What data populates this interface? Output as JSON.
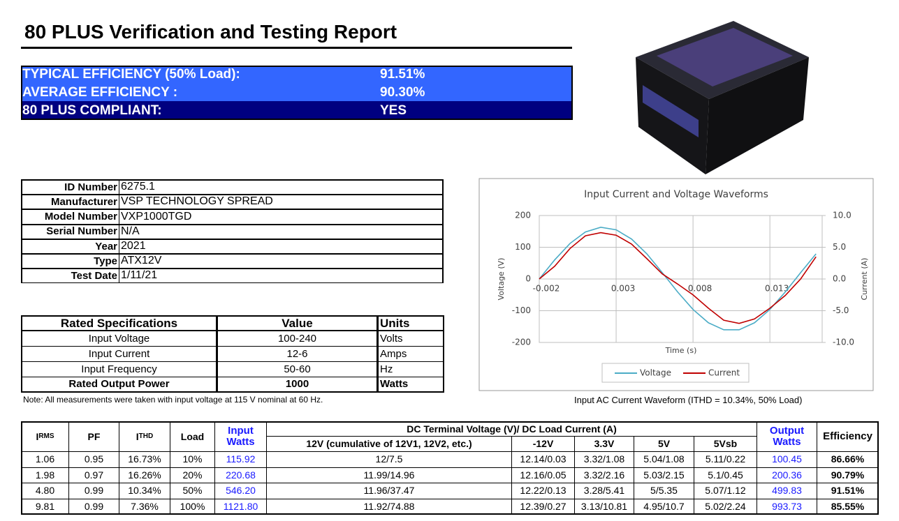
{
  "title": "80 PLUS Verification and Testing Report",
  "summary": [
    [
      "TYPICAL EFFICIENCY (50% Load):",
      "91.51%"
    ],
    [
      "AVERAGE EFFICIENCY :",
      "90.30%"
    ],
    [
      "80 PLUS COMPLIANT:",
      "YES"
    ]
  ],
  "id_table": [
    [
      "ID Number",
      "6275.1"
    ],
    [
      "Manufacturer",
      "VSP TECHNOLOGY SPREAD"
    ],
    [
      "Model Number",
      "VXP1000TGD"
    ],
    [
      "Serial Number",
      "N/A"
    ],
    [
      "Year",
      "2021"
    ],
    [
      "Type",
      "ATX12V"
    ],
    [
      "Test Date",
      "1/11/21"
    ]
  ],
  "specs_table": {
    "headers": [
      "Rated Specifications",
      "Value",
      "Units"
    ],
    "rows": [
      [
        "Input Voltage",
        "100-240",
        "Volts"
      ],
      [
        "Input Current",
        "12-6",
        "Amps"
      ],
      [
        "Input Frequency",
        "50-60",
        "Hz"
      ],
      [
        "Rated Output Power",
        "1000",
        "Watts"
      ]
    ]
  },
  "note": "Note: All measurements were taken with input voltage at 115 V nominal at 60 Hz.",
  "chart_caption": "Input AC Current Waveform (ITHD = 10.34%, 50% Load)",
  "chart_data": {
    "type": "line",
    "title": "Input Current and Voltage Waveforms",
    "xlabel": "Time (s)",
    "ylabel": "Voltage (V)",
    "y2label": "Current (A)",
    "x": [
      -0.002,
      -0.001,
      0,
      0.001,
      0.002,
      0.003,
      0.004,
      0.005,
      0.006,
      0.007,
      0.008,
      0.009,
      0.01,
      0.011,
      0.012,
      0.013,
      0.014,
      0.015,
      0.016
    ],
    "xlim": [
      -0.002,
      0.0164
    ],
    "xticks": [
      -0.002,
      0.003,
      0.008,
      0.013
    ],
    "ylim": [
      -200,
      200
    ],
    "yticks": [
      -200,
      -100,
      0,
      100,
      200
    ],
    "y2lim": [
      -10,
      10
    ],
    "y2ticks": [
      {
        "value": -10,
        "label": "-10.0"
      },
      {
        "value": -5,
        "label": "-5.0"
      },
      {
        "value": 0,
        "label": "0.0"
      },
      {
        "value": 5,
        "label": "5.0"
      },
      {
        "value": 10,
        "label": "10.0"
      }
    ],
    "grid": true,
    "legend": "bottom",
    "series": [
      {
        "name": "Voltage",
        "color": "#4bacc6",
        "values": [
          0,
          60,
          112,
          148,
          163,
          155,
          126,
          79,
          20,
          -41,
          -96,
          -138,
          -160,
          -160,
          -138,
          -96,
          -41,
          20,
          79
        ]
      },
      {
        "name": "Current",
        "color": "#c00000",
        "axis": "y2",
        "values": [
          0,
          2.0,
          4.8,
          6.8,
          7.3,
          6.9,
          5.5,
          3.2,
          0.8,
          -0.8,
          -2.5,
          -4.6,
          -6.5,
          -7.0,
          -6.3,
          -4.6,
          -2.6,
          0,
          3.5
        ]
      }
    ]
  },
  "results_table": {
    "headers": {
      "irms": {
        "main": "I",
        "sub": "RMS"
      },
      "pf": "PF",
      "ithd": {
        "main": "I",
        "sub": "THD"
      },
      "load": "Load",
      "input_watts": "Input Watts",
      "dc_group": "DC Terminal Voltage (V)/ DC Load Current (A)",
      "dc_columns": [
        "12V (cumulative of 12V1, 12V2, etc.)",
        "-12V",
        "3.3V",
        "5V",
        "5Vsb"
      ],
      "output_watts": "Output Watts",
      "efficiency": "Efficiency"
    },
    "rows": [
      [
        "1.06",
        "0.95",
        "16.73%",
        "10%",
        "115.92",
        "12/7.5",
        "12.14/0.03",
        "3.32/1.08",
        "5.04/1.08",
        "5.11/0.22",
        "100.45",
        "86.66%"
      ],
      [
        "1.98",
        "0.97",
        "16.26%",
        "20%",
        "220.68",
        "11.99/14.96",
        "12.16/0.05",
        "3.32/2.16",
        "5.03/2.15",
        "5.1/0.45",
        "200.36",
        "90.79%"
      ],
      [
        "4.80",
        "0.99",
        "10.34%",
        "50%",
        "546.20",
        "11.96/37.47",
        "12.22/0.13",
        "3.28/5.41",
        "5/5.35",
        "5.07/1.12",
        "499.83",
        "91.51%"
      ],
      [
        "9.81",
        "0.99",
        "7.36%",
        "100%",
        "1121.80",
        "11.92/74.88",
        "12.39/0.27",
        "3.13/10.81",
        "4.95/10.7",
        "5.02/2.24",
        "993.73",
        "85.55%"
      ]
    ]
  }
}
